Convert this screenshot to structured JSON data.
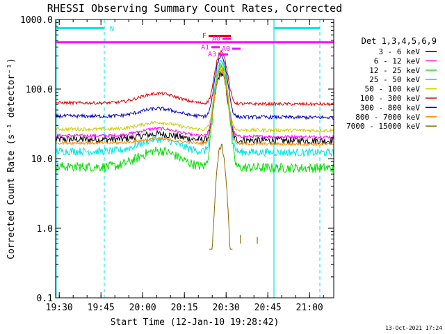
{
  "chart_data": {
    "type": "line",
    "title": "RHESSI Observing Summary Count Rates, Corrected",
    "xlabel": "Start Time (12-Jan-10 19:28:42)",
    "ylabel": "Corrected Count Rate (s⁻¹ detector⁻¹)",
    "yscale": "log",
    "ylim": [
      0.1,
      1000
    ],
    "xlim_minutes": [
      0,
      100
    ],
    "x_ticks": [
      {
        "t": 1.3,
        "label": "19:30"
      },
      {
        "t": 16.3,
        "label": "19:45"
      },
      {
        "t": 31.3,
        "label": "20:00"
      },
      {
        "t": 46.3,
        "label": "20:15"
      },
      {
        "t": 61.3,
        "label": "20:30"
      },
      {
        "t": 76.3,
        "label": "20:45"
      },
      {
        "t": 91.3,
        "label": "21:00"
      }
    ],
    "y_ticks": [
      {
        "v": 1000,
        "label": "1000.0"
      },
      {
        "v": 100,
        "label": "100.0"
      },
      {
        "v": 10,
        "label": "10.0"
      },
      {
        "v": 1,
        "label": "1.0"
      },
      {
        "v": 0.1,
        "label": "0.1"
      }
    ],
    "legend_title": "Det 1,3,4,5,6,9",
    "series": [
      {
        "name": "3 - 6 keV",
        "color": "#000000",
        "base": 18.5,
        "bump": 4,
        "noise": 0.12,
        "peak": 150
      },
      {
        "name": "6 - 12 keV",
        "color": "#ff00ff",
        "base": 21,
        "bump": 6,
        "noise": 0.05,
        "peak": 190
      },
      {
        "name": "12 - 25 keV",
        "color": "#00dd00",
        "base": 7.5,
        "bump": 5.5,
        "noise": 0.16,
        "peak": 210
      },
      {
        "name": "25 - 50 keV",
        "color": "#00e5e5",
        "base": 12.5,
        "bump": 6.5,
        "noise": 0.13,
        "peak": 240
      },
      {
        "name": "50 - 100 keV",
        "color": "#cccc00",
        "base": 26,
        "bump": 7,
        "noise": 0.06,
        "peak": 180
      },
      {
        "name": "100 - 300 keV",
        "color": "#dd0000",
        "base": 62,
        "bump": 24,
        "noise": 0.05,
        "peak": 290
      },
      {
        "name": "300 - 800 keV",
        "color": "#0000cc",
        "base": 40,
        "bump": 12,
        "noise": 0.06,
        "peak": 260
      },
      {
        "name": "800 - 7000 keV",
        "color": "#ff8800",
        "base": 16.5,
        "bump": 2.5,
        "noise": 0.05,
        "peak": 170
      },
      {
        "name": "7000 - 15000 keV",
        "color": "#886600",
        "base": 0,
        "bump": 0,
        "noise": 0.1,
        "peak": 15
      }
    ],
    "flare_peak_minutes": 59.5,
    "night_markers": [
      {
        "label": "N",
        "t_start": 0,
        "t_end": 17.5,
        "level": 750,
        "color": "#00e5e5"
      },
      {
        "label": "",
        "t_start": 78.5,
        "t_end": 95,
        "level": 750,
        "color": "#00e5e5"
      }
    ],
    "vlines_solid": [
      0.2,
      78.5
    ],
    "vlines_dashed": [
      17.5,
      95
    ],
    "saa_bar": {
      "level": 470,
      "color": "#ff00ff"
    },
    "attenuator_flags": [
      {
        "label": "F",
        "t_start": 55,
        "t_end": 63,
        "level": 580,
        "color": "#dd0000"
      },
      {
        "label": "A0",
        "t_start": 60,
        "t_end": 63,
        "level": 530,
        "color": "#ff00ff"
      },
      {
        "label": "A1",
        "t_start": 56,
        "t_end": 59,
        "level": 400,
        "color": "#ff00ff"
      },
      {
        "label": "A0",
        "t_start": 63.5,
        "t_end": 66.5,
        "level": 380,
        "color": "#ff00ff"
      },
      {
        "label": "A3",
        "t_start": 58.5,
        "t_end": 62,
        "level": 315,
        "color": "#ff00ff"
      }
    ],
    "brown_fragments": [
      {
        "t": 66.5,
        "lo": 0.6,
        "hi": 0.8
      },
      {
        "t": 72.5,
        "lo": 0.6,
        "hi": 0.75
      }
    ],
    "timestamp": "13-Oct-2021 17:24"
  }
}
